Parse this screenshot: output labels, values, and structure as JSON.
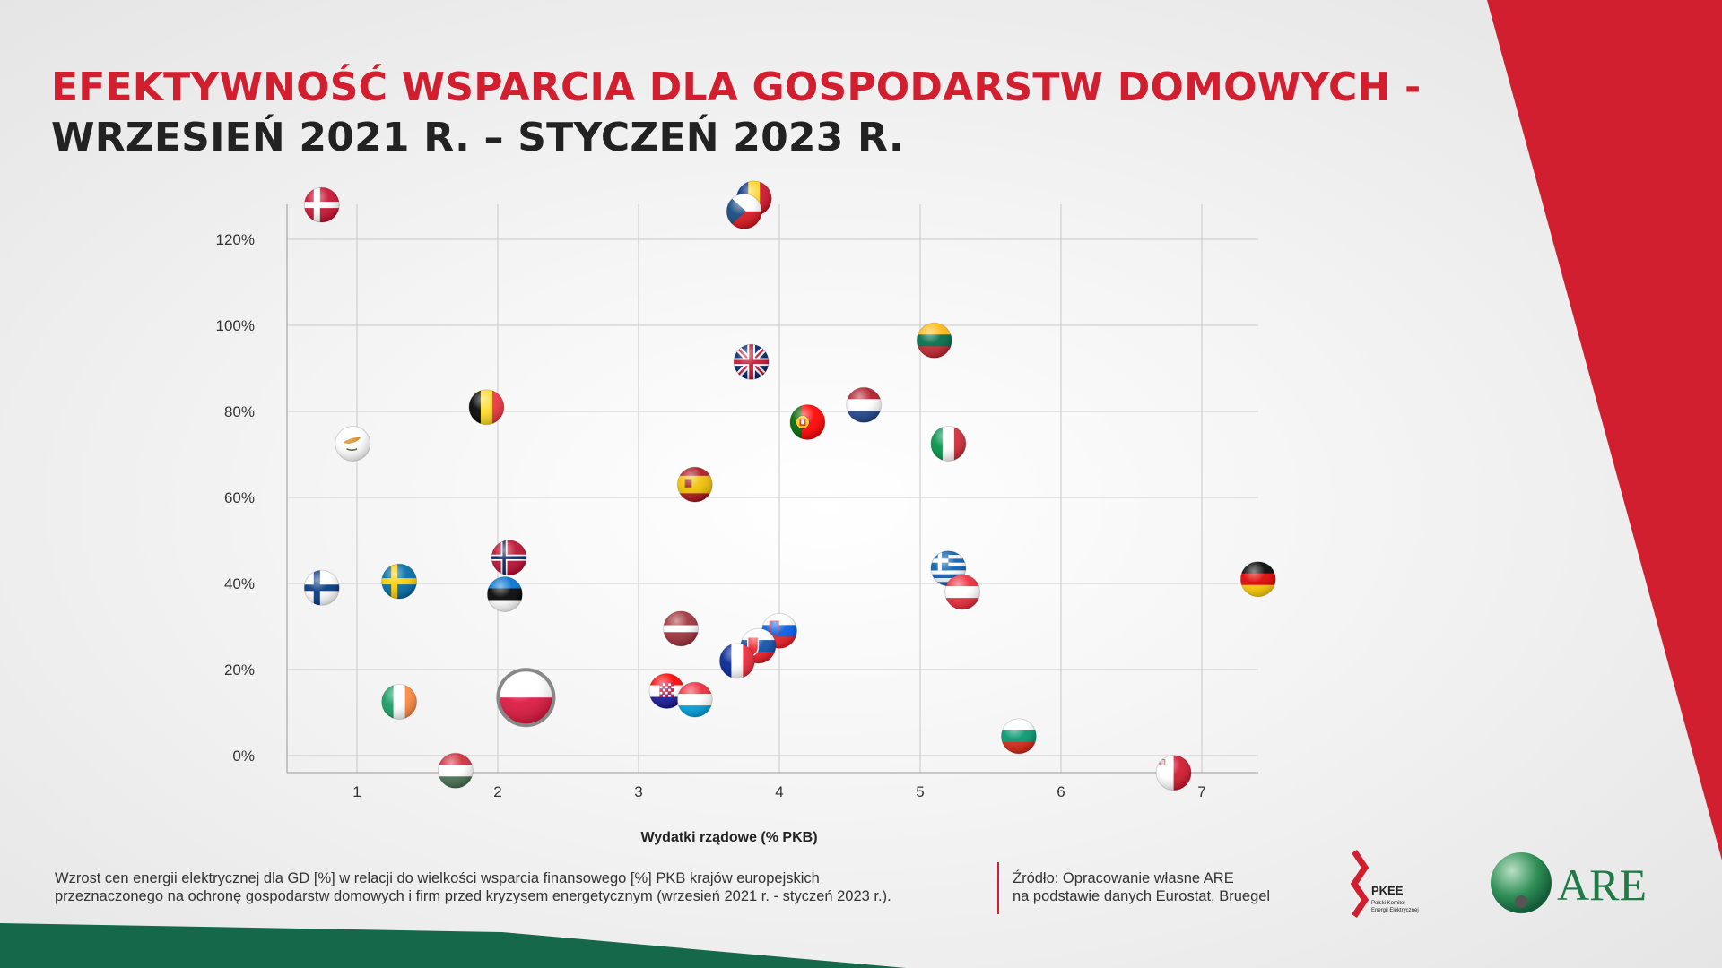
{
  "header": {
    "title_line1": "EFEKTYWNOŚĆ WSPARCIA DLA GOSPODARSTW DOMOWYCH -",
    "title_line2": "WRZESIEŃ 2021 R. – STYCZEŃ 2023 R."
  },
  "footer": {
    "note_line1": "Wzrost cen energii elektrycznej dla GD [%] w relacji do wielkości wsparcia finansowego [%] PKB krajów europejskich",
    "note_line2": "przeznaczonego na ochronę gospodarstw domowych i firm przed kryzysem energetycznym (wrzesień 2021 r. - styczeń 2023 r.).",
    "source_line1": "Źródło: Opracowanie własne ARE",
    "source_line2": "na podstawie danych Eurostat, Bruegel"
  },
  "logos": {
    "pkee_name": "PKEE",
    "pkee_sub1": "Polski Komitet",
    "pkee_sub2": "Energii Elektrycznej",
    "are_name": "ARE"
  },
  "colors": {
    "accent_red": "#d11f2f",
    "title_dark": "#222222",
    "footer_green": "#16684a"
  },
  "chart_data": {
    "type": "scatter",
    "xlabel": "Wydatki rządowe (% PKB)",
    "ylabel": "",
    "xlim": [
      0.5,
      7.4
    ],
    "ylim": [
      -4,
      131
    ],
    "x_ticks": [
      1,
      2,
      3,
      4,
      5,
      6,
      7
    ],
    "y_ticks": [
      0,
      20,
      40,
      60,
      80,
      100,
      120
    ],
    "y_tick_labels": [
      "0%",
      "20%",
      "40%",
      "60%",
      "80%",
      "100%",
      "120%"
    ],
    "grid": true,
    "marker": "country flag",
    "points": [
      {
        "country": "Denmark",
        "x": 0.75,
        "y": 128,
        "flag": "dk"
      },
      {
        "country": "Romania",
        "x": 3.82,
        "y": 129.5,
        "flag": "ro"
      },
      {
        "country": "Czechia",
        "x": 3.75,
        "y": 126.5,
        "flag": "cz"
      },
      {
        "country": "Lithuania",
        "x": 5.1,
        "y": 96.5,
        "flag": "lt"
      },
      {
        "country": "United Kingdom",
        "x": 3.8,
        "y": 91.5,
        "flag": "gb"
      },
      {
        "country": "Belgium",
        "x": 1.92,
        "y": 81,
        "flag": "be"
      },
      {
        "country": "Netherlands",
        "x": 4.6,
        "y": 81.5,
        "flag": "nl"
      },
      {
        "country": "Portugal",
        "x": 4.2,
        "y": 77.5,
        "flag": "pt"
      },
      {
        "country": "Cyprus",
        "x": 0.97,
        "y": 72.5,
        "flag": "cy"
      },
      {
        "country": "Italy",
        "x": 5.2,
        "y": 72.5,
        "flag": "it"
      },
      {
        "country": "Spain",
        "x": 3.4,
        "y": 63,
        "flag": "es"
      },
      {
        "country": "Norway",
        "x": 2.08,
        "y": 46,
        "flag": "no"
      },
      {
        "country": "Greece",
        "x": 5.2,
        "y": 43.5,
        "flag": "gr"
      },
      {
        "country": "Finland",
        "x": 0.75,
        "y": 39,
        "flag": "fi"
      },
      {
        "country": "Sweden",
        "x": 1.3,
        "y": 40.5,
        "flag": "se"
      },
      {
        "country": "Estonia",
        "x": 2.05,
        "y": 37.5,
        "flag": "ee"
      },
      {
        "country": "Germany",
        "x": 7.4,
        "y": 41,
        "flag": "de"
      },
      {
        "country": "Austria",
        "x": 5.3,
        "y": 38,
        "flag": "at"
      },
      {
        "country": "Latvia",
        "x": 3.3,
        "y": 29.5,
        "flag": "lv"
      },
      {
        "country": "Slovenia",
        "x": 4.0,
        "y": 29,
        "flag": "si"
      },
      {
        "country": "Slovakia",
        "x": 3.85,
        "y": 25.5,
        "flag": "sk"
      },
      {
        "country": "France",
        "x": 3.7,
        "y": 22,
        "flag": "fr"
      },
      {
        "country": "Croatia",
        "x": 3.2,
        "y": 15,
        "flag": "hr"
      },
      {
        "country": "Luxembourg",
        "x": 3.4,
        "y": 13,
        "flag": "lu"
      },
      {
        "country": "Ireland",
        "x": 1.3,
        "y": 12.5,
        "flag": "ie"
      },
      {
        "country": "Poland",
        "x": 2.2,
        "y": 13.5,
        "flag": "pl",
        "highlight": true
      },
      {
        "country": "Bulgaria",
        "x": 5.7,
        "y": 4.5,
        "flag": "bg"
      },
      {
        "country": "Hungary",
        "x": 1.7,
        "y": -3.5,
        "flag": "hu"
      },
      {
        "country": "Malta",
        "x": 6.8,
        "y": -4,
        "flag": "mt"
      }
    ]
  }
}
